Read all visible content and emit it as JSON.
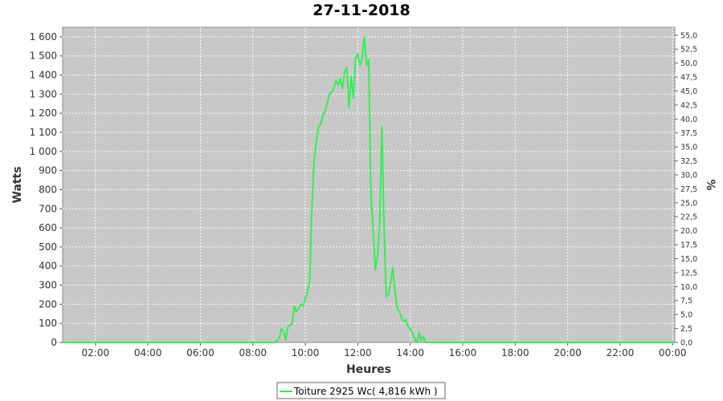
{
  "chart_data": {
    "type": "line",
    "title": "27-11-2018",
    "xlabel": "Heures",
    "ylabel": "Watts",
    "y2label": "%",
    "grid": true,
    "legend_position": "bottom",
    "colors": {
      "series": "#33ee55",
      "plot_background": "#c8c8c8",
      "grid": "#ffffff"
    },
    "xlim": [
      "00:45",
      "24:05"
    ],
    "ylim": [
      0,
      1650
    ],
    "y2lim": [
      0,
      56.41
    ],
    "x_ticks": [
      "02:00",
      "04:00",
      "06:00",
      "08:00",
      "10:00",
      "12:00",
      "14:00",
      "16:00",
      "18:00",
      "20:00",
      "22:00",
      "00:00"
    ],
    "y_ticks": [
      0,
      100,
      200,
      300,
      400,
      500,
      600,
      700,
      800,
      900,
      1000,
      1100,
      1200,
      1300,
      1400,
      1500,
      1600
    ],
    "y_tick_labels": [
      "0",
      "100",
      "200",
      "300",
      "400",
      "500",
      "600",
      "700",
      "800",
      "900",
      "1 000",
      "1 100",
      "1 200",
      "1 300",
      "1 400",
      "1 500",
      "1 600"
    ],
    "y2_ticks": [
      0,
      2.5,
      5,
      7.5,
      10,
      12.5,
      15,
      17.5,
      20,
      22.5,
      25,
      27.5,
      30,
      32.5,
      35,
      37.5,
      40,
      42.5,
      45,
      47.5,
      50,
      52.5,
      55
    ],
    "y2_tick_labels": [
      "0,0",
      "2,5",
      "5,0",
      "7,5",
      "10,0",
      "12,5",
      "15,0",
      "17,5",
      "20,0",
      "22,5",
      "25,0",
      "27,5",
      "30,0",
      "32,5",
      "35,0",
      "37,5",
      "40,0",
      "42,5",
      "45,0",
      "47,5",
      "50,0",
      "52,5",
      "55,0"
    ],
    "series": [
      {
        "name": "Toiture 2925 Wc( 4,816 kWh )",
        "x": [
          "00:45",
          "08:30",
          "08:50",
          "09:00",
          "09:05",
          "09:10",
          "09:15",
          "09:20",
          "09:25",
          "09:30",
          "09:35",
          "09:40",
          "09:45",
          "09:50",
          "09:55",
          "10:00",
          "10:05",
          "10:10",
          "10:15",
          "10:20",
          "10:25",
          "10:30",
          "10:35",
          "10:40",
          "10:45",
          "10:50",
          "10:55",
          "11:00",
          "11:05",
          "11:10",
          "11:15",
          "11:20",
          "11:25",
          "11:30",
          "11:35",
          "11:40",
          "11:45",
          "11:50",
          "11:55",
          "12:00",
          "12:05",
          "12:10",
          "12:15",
          "12:20",
          "12:25",
          "12:30",
          "12:35",
          "12:40",
          "12:45",
          "12:50",
          "12:55",
          "13:00",
          "13:05",
          "13:10",
          "13:15",
          "13:20",
          "13:25",
          "13:30",
          "13:35",
          "13:40",
          "13:45",
          "13:50",
          "13:55",
          "14:00",
          "14:05",
          "14:10",
          "14:15",
          "14:20",
          "14:25",
          "14:30",
          "14:35",
          "14:40",
          "14:45",
          "14:50",
          "14:55",
          "15:00",
          "15:05",
          "15:10",
          "15:15",
          "15:20",
          "15:25",
          "15:30",
          "15:35",
          "15:40",
          "15:45",
          "15:50",
          "15:55",
          "16:00",
          "16:05",
          "24:05"
        ],
        "values": [
          0,
          0,
          0,
          20,
          70,
          60,
          10,
          80,
          90,
          100,
          190,
          160,
          180,
          200,
          190,
          230,
          270,
          320,
          700,
          950,
          1050,
          1130,
          1140,
          1190,
          1210,
          1250,
          1300,
          1310,
          1330,
          1370,
          1350,
          1380,
          1330,
          1420,
          1440,
          1230,
          1390,
          1280,
          1490,
          1510,
          1450,
          1490,
          1600,
          1450,
          1480,
          780,
          600,
          380,
          450,
          620,
          1130,
          600,
          240,
          250,
          310,
          390,
          270,
          180,
          160,
          130,
          110,
          120,
          80,
          70,
          50,
          20,
          0,
          50,
          10,
          30,
          0,
          0,
          0,
          0,
          0,
          0,
          0,
          0,
          0,
          0,
          0,
          0,
          0,
          0,
          0,
          0,
          0,
          0,
          0,
          0
        ]
      }
    ]
  }
}
